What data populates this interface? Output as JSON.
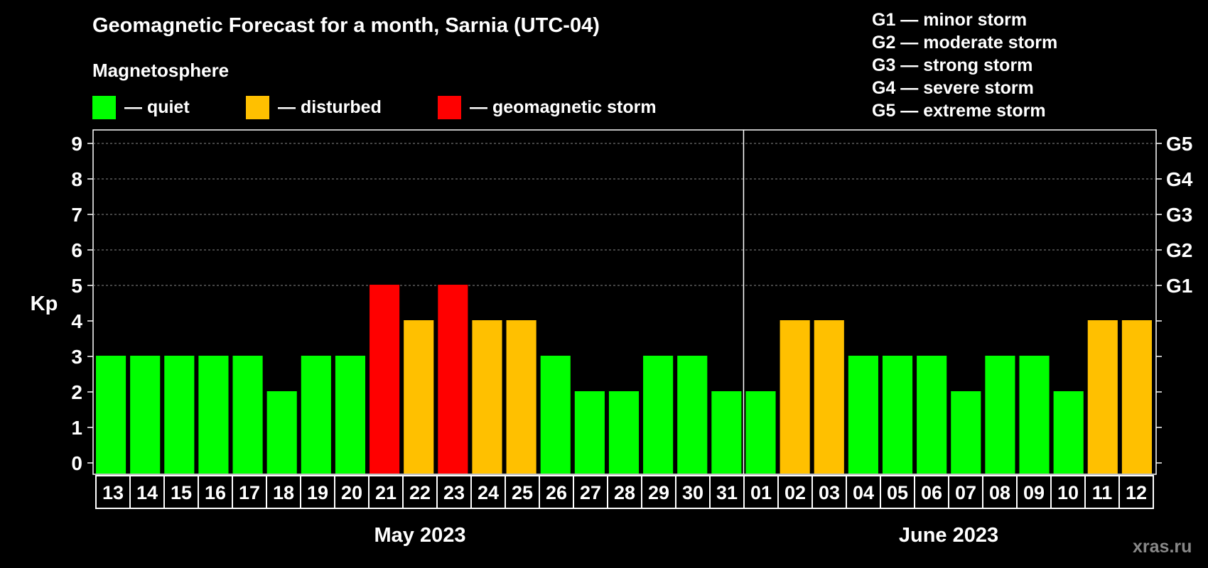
{
  "header": {
    "title": "Geomagnetic Forecast for a month, Sarnia (UTC-04)",
    "magnetosphere_label": "Magnetosphere"
  },
  "legend": [
    {
      "label": "— quiet",
      "color": "#00ff00"
    },
    {
      "label": "— disturbed",
      "color": "#ffc000"
    },
    {
      "label": "— geomagnetic storm",
      "color": "#ff0000"
    }
  ],
  "storm_scale": [
    "G1 — minor storm",
    "G2 — moderate storm",
    "G3 — strong storm",
    "G4 — severe storm",
    "G5 — extreme storm"
  ],
  "watermark": "xras.ru",
  "colors": {
    "quiet": "#00ff00",
    "disturbed": "#ffc000",
    "storm": "#ff0000",
    "background": "#000000"
  },
  "chart_data": {
    "type": "bar",
    "title": "Geomagnetic Forecast for a month, Sarnia (UTC-04)",
    "ylabel": "Kp",
    "ylim": [
      0,
      9
    ],
    "yticks": [
      0,
      1,
      2,
      3,
      4,
      5,
      6,
      7,
      8,
      9
    ],
    "right_axis_labels": [
      {
        "value": 5,
        "label": "G1"
      },
      {
        "value": 6,
        "label": "G2"
      },
      {
        "value": 7,
        "label": "G3"
      },
      {
        "value": 8,
        "label": "G4"
      },
      {
        "value": 9,
        "label": "G5"
      }
    ],
    "grid": "horizontal dashed at 5-9",
    "month_groups": [
      {
        "label": "May 2023",
        "days": [
          "13",
          "14",
          "15",
          "16",
          "17",
          "18",
          "19",
          "20",
          "21",
          "22",
          "23",
          "24",
          "25",
          "26",
          "27",
          "28",
          "29",
          "30",
          "31"
        ]
      },
      {
        "label": "June 2023",
        "days": [
          "01",
          "02",
          "03",
          "04",
          "05",
          "06",
          "07",
          "08",
          "09",
          "10",
          "11",
          "12"
        ]
      }
    ],
    "categories": [
      "13",
      "14",
      "15",
      "16",
      "17",
      "18",
      "19",
      "20",
      "21",
      "22",
      "23",
      "24",
      "25",
      "26",
      "27",
      "28",
      "29",
      "30",
      "31",
      "01",
      "02",
      "03",
      "04",
      "05",
      "06",
      "07",
      "08",
      "09",
      "10",
      "11",
      "12"
    ],
    "values": [
      3,
      3,
      3,
      3,
      3,
      2,
      3,
      3,
      5,
      4,
      5,
      4,
      4,
      3,
      2,
      2,
      3,
      3,
      2,
      2,
      4,
      4,
      3,
      3,
      3,
      2,
      3,
      3,
      2,
      4,
      4
    ],
    "levels": [
      "quiet",
      "quiet",
      "quiet",
      "quiet",
      "quiet",
      "quiet",
      "quiet",
      "quiet",
      "storm",
      "disturbed",
      "storm",
      "disturbed",
      "disturbed",
      "quiet",
      "quiet",
      "quiet",
      "quiet",
      "quiet",
      "quiet",
      "quiet",
      "disturbed",
      "disturbed",
      "quiet",
      "quiet",
      "quiet",
      "quiet",
      "quiet",
      "quiet",
      "quiet",
      "disturbed",
      "disturbed"
    ]
  }
}
